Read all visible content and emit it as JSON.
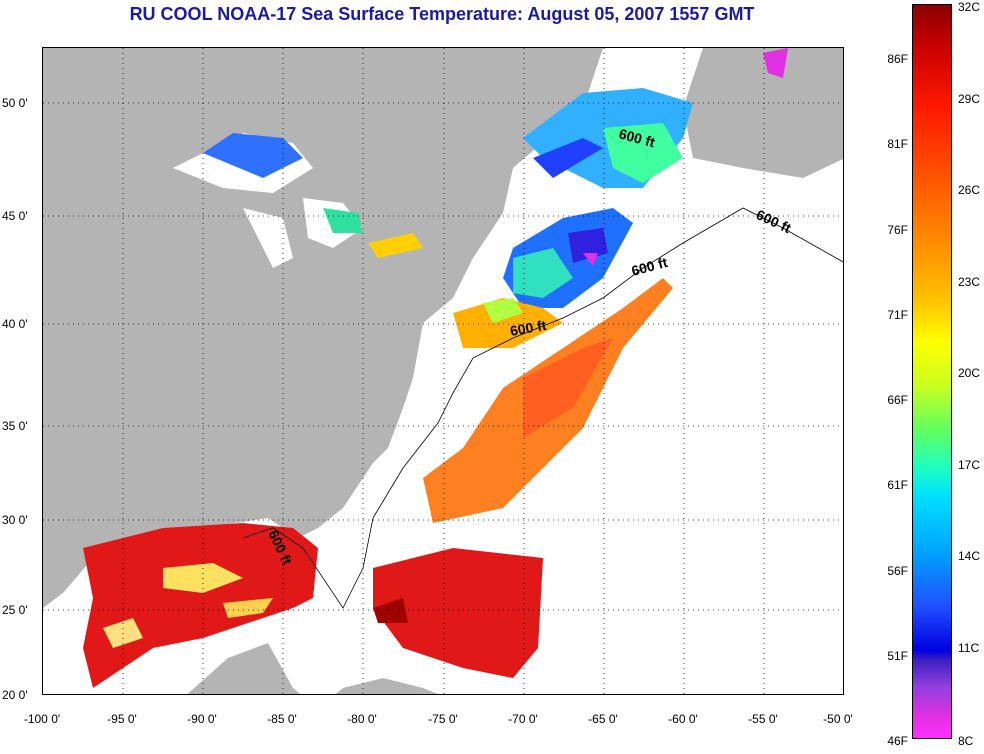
{
  "title": "RU COOL  NOAA-17  Sea Surface Temperature:  August 05, 2007 1557 GMT",
  "y_ticks": [
    "50 0'",
    "45 0'",
    "40 0'",
    "35 0'",
    "30 0'",
    "25 0'",
    "20 0'"
  ],
  "x_ticks": [
    "-100 0'",
    "-95 0'",
    "-90 0'",
    "-85 0'",
    "-80 0'",
    "-75 0'",
    "-70 0'",
    "-65 0'",
    "-60 0'",
    "-55 0'",
    "-50 0'"
  ],
  "contour_labels": [
    "600 ft",
    "600 ft",
    "600 ft",
    "600 ft",
    "600 ft"
  ],
  "colorbar": {
    "fahrenheit": [
      "86F",
      "81F",
      "76F",
      "71F",
      "66F",
      "61F",
      "56F",
      "51F",
      "46F"
    ],
    "celsius": [
      "32C",
      "29C",
      "26C",
      "23C",
      "20C",
      "17C",
      "14C",
      "11C",
      "8C"
    ]
  },
  "colors": {
    "title": "#1a1aa6",
    "land": "#b4b4b4",
    "no_data": "#ffffff"
  }
}
